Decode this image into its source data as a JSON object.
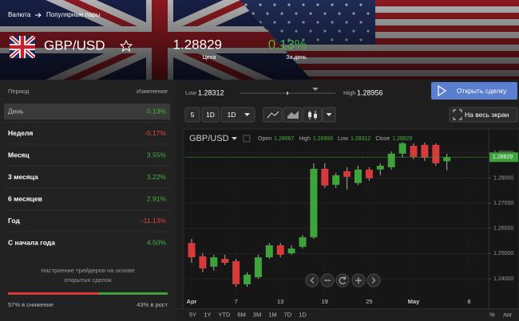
{
  "breadcrumb": [
    "Валюта",
    "Популярные пары"
  ],
  "instrument": {
    "name": "GBP/USD",
    "price": 1.28829,
    "price_label": "Цена",
    "change": "0.13%",
    "change_label": "За день"
  },
  "periods": {
    "header": [
      "Период",
      "Изменение"
    ],
    "rows": [
      [
        "День",
        "0.13%"
      ],
      [
        "Неделя",
        "-0.17%"
      ],
      [
        "Месяц",
        "3.55%"
      ],
      [
        "3 месяца",
        "3.22%"
      ],
      [
        "6 месяцев",
        "2.91%"
      ],
      [
        "Год",
        "-11.13%"
      ],
      [
        "С начала года",
        "4.50%"
      ]
    ]
  },
  "sentiment": {
    "text": [
      "Настроение трейдеров на основе",
      "открытых сделок"
    ],
    "down": {
      "value": 57,
      "label": "57% в снижение"
    },
    "up": {
      "value": 43,
      "label": "43% в рост"
    }
  },
  "range": {
    "low_label": "Low",
    "low": 1.28312,
    "high_label": "High",
    "high": 1.28956
  },
  "buttons": {
    "open_trade": "Открыть сделку",
    "fullscreen": "На весь экран"
  },
  "toolbar": [
    "5",
    "1D",
    "1D"
  ],
  "chart_data": {
    "type": "candlestick",
    "title": "GBP/USD",
    "legend": [
      {
        "label": "Open",
        "value": 1.28667
      },
      {
        "label": "High",
        "value": 1.28956
      },
      {
        "label": "Low",
        "value": 1.28312
      },
      {
        "label": "Close",
        "value": 1.28829
      }
    ],
    "x_labels": [
      "Apr",
      "7",
      "13",
      "19",
      "25",
      "May",
      "8"
    ],
    "open": [
      1.2542,
      1.2489,
      1.2448,
      1.2479,
      1.247,
      1.2378,
      1.2406,
      1.2485,
      1.2533,
      1.2501,
      1.2527,
      1.2565,
      1.2837,
      1.2773,
      1.2827,
      1.278,
      1.2834,
      1.2834,
      1.2843,
      1.2897,
      1.2928,
      1.2932,
      1.2932,
      1.2867
    ],
    "high": [
      1.2558,
      1.2501,
      1.2495,
      1.2495,
      1.2479,
      1.2425,
      1.2495,
      1.2542,
      1.2542,
      1.2533,
      1.2574,
      1.2859,
      1.2859,
      1.2821,
      1.2843,
      1.2849,
      1.2843,
      1.2859,
      1.2906,
      1.2944,
      1.2938,
      1.2941,
      1.2938,
      1.2896
    ],
    "low": [
      1.2463,
      1.2425,
      1.2432,
      1.2454,
      1.2368,
      1.2368,
      1.24,
      1.2479,
      1.2485,
      1.2495,
      1.252,
      1.2558,
      1.2761,
      1.2761,
      1.2754,
      1.2773,
      1.2789,
      1.2811,
      1.2834,
      1.2881,
      1.2875,
      1.2868,
      1.2849,
      1.2831
    ],
    "close": [
      1.2485,
      1.2441,
      1.2485,
      1.2463,
      1.2378,
      1.2416,
      1.2485,
      1.2533,
      1.2495,
      1.252,
      1.2565,
      1.2837,
      1.277,
      1.2811,
      1.2805,
      1.2834,
      1.2799,
      1.2849,
      1.2897,
      1.2938,
      1.2884,
      1.2881,
      1.2859,
      1.2883
    ],
    "up_color": "#3ea33a",
    "down_color": "#d63a3a",
    "ylim": [
      1.2289,
      1.2922
    ],
    "yticks": [
      {
        "value": 1.29,
        "label": "1.29000"
      },
      {
        "value": 1.28,
        "label": "1.28000"
      },
      {
        "value": 1.27,
        "label": "1.27000"
      },
      {
        "value": 1.26,
        "label": "1.26000"
      },
      {
        "value": 1.25,
        "label": "1.25000"
      },
      {
        "value": 1.24,
        "label": "1.24000"
      }
    ],
    "last_price": 1.28829,
    "grid": true,
    "ranges": [
      "5Y",
      "1Y",
      "YTD",
      "6M",
      "3M",
      "1M",
      "7D",
      "1D"
    ],
    "scale_options": [
      "%",
      "лог"
    ]
  }
}
